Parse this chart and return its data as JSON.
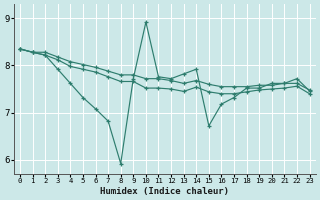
{
  "title": "",
  "xlabel": "Humidex (Indice chaleur)",
  "ylabel": "",
  "bg_color": "#cce8e8",
  "grid_color": "#ffffff",
  "line_color": "#2e7d6e",
  "xlim": [
    -0.5,
    23.5
  ],
  "ylim": [
    5.7,
    9.3
  ],
  "yticks": [
    6,
    7,
    8,
    9
  ],
  "xticks": [
    0,
    1,
    2,
    3,
    4,
    5,
    6,
    7,
    8,
    9,
    10,
    11,
    12,
    13,
    14,
    15,
    16,
    17,
    18,
    19,
    20,
    21,
    22,
    23
  ],
  "line1_x": [
    0,
    1,
    2,
    3,
    4,
    5,
    6,
    7,
    8,
    9,
    10,
    11,
    12,
    13,
    14,
    15,
    16,
    17,
    18,
    19,
    20,
    21,
    22,
    23
  ],
  "line1_y": [
    8.35,
    8.28,
    8.28,
    8.18,
    8.08,
    8.02,
    7.96,
    7.88,
    7.8,
    7.8,
    7.72,
    7.72,
    7.68,
    7.62,
    7.68,
    7.6,
    7.55,
    7.55,
    7.55,
    7.58,
    7.58,
    7.62,
    7.62,
    7.48
  ],
  "line2_x": [
    0,
    1,
    2,
    3,
    4,
    5,
    6,
    7,
    8,
    9,
    10,
    11,
    12,
    13,
    14,
    15,
    16,
    17,
    18,
    19,
    20,
    21,
    22,
    23
  ],
  "line2_y": [
    8.35,
    8.28,
    8.22,
    8.12,
    7.98,
    7.92,
    7.86,
    7.76,
    7.66,
    7.66,
    7.52,
    7.52,
    7.5,
    7.45,
    7.54,
    7.44,
    7.4,
    7.4,
    7.44,
    7.48,
    7.5,
    7.52,
    7.56,
    7.4
  ],
  "line3_x": [
    0,
    1,
    2,
    3,
    4,
    5,
    6,
    7,
    8,
    9,
    10,
    11,
    12,
    13,
    14,
    15,
    16,
    17,
    18,
    19,
    20,
    21,
    22,
    23
  ],
  "line3_y": [
    8.35,
    8.28,
    8.22,
    7.92,
    7.62,
    7.32,
    7.08,
    6.82,
    5.92,
    7.72,
    8.92,
    7.76,
    7.72,
    7.82,
    7.92,
    6.72,
    7.18,
    7.32,
    7.52,
    7.52,
    7.62,
    7.62,
    7.72,
    7.46
  ]
}
